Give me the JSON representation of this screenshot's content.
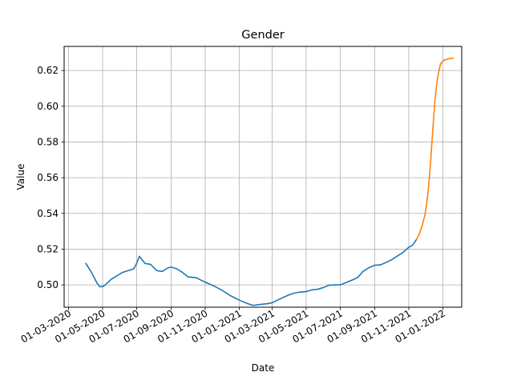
{
  "chart_data": {
    "type": "line",
    "title": "Gender",
    "xlabel": "Date",
    "ylabel": "Value",
    "x_axis_type": "date",
    "x_tick_labels": [
      "01-03-2020",
      "01-05-2020",
      "01-07-2020",
      "01-09-2020",
      "01-11-2020",
      "01-01-2021",
      "01-03-2021",
      "01-05-2021",
      "01-07-2021",
      "01-09-2021",
      "01-11-2021",
      "01-01-2022"
    ],
    "x_tick_dates": [
      "2020-03-01",
      "2020-05-01",
      "2020-07-01",
      "2020-09-01",
      "2020-11-01",
      "2021-01-01",
      "2021-03-01",
      "2021-05-01",
      "2021-07-01",
      "2021-09-01",
      "2021-11-01",
      "2022-01-01"
    ],
    "xlim": [
      "2020-02-22",
      "2022-02-04"
    ],
    "y_ticks": [
      0.5,
      0.52,
      0.54,
      0.56,
      0.58,
      0.6,
      0.62
    ],
    "y_tick_labels": [
      "0.50",
      "0.52",
      "0.54",
      "0.56",
      "0.58",
      "0.60",
      "0.62"
    ],
    "ylim": [
      0.4875,
      0.6335
    ],
    "grid": true,
    "colors": {
      "series_1": "#1f77b4",
      "series_2": "#ff7f0e",
      "grid": "#b0b0b0"
    },
    "series": [
      {
        "color": "#1f77b4",
        "points": [
          [
            "2020-04-01",
            0.512
          ],
          [
            "2020-04-11",
            0.507
          ],
          [
            "2020-04-21",
            0.501
          ],
          [
            "2020-04-26",
            0.499
          ],
          [
            "2020-05-01",
            0.499
          ],
          [
            "2020-05-06",
            0.5
          ],
          [
            "2020-05-16",
            0.503
          ],
          [
            "2020-05-26",
            0.505
          ],
          [
            "2020-06-06",
            0.507
          ],
          [
            "2020-06-16",
            0.508
          ],
          [
            "2020-06-26",
            0.509
          ],
          [
            "2020-07-01",
            0.512
          ],
          [
            "2020-07-06",
            0.516
          ],
          [
            "2020-07-11",
            0.514
          ],
          [
            "2020-07-16",
            0.512
          ],
          [
            "2020-07-26",
            0.5115
          ],
          [
            "2020-08-06",
            0.508
          ],
          [
            "2020-08-16",
            0.5075
          ],
          [
            "2020-08-26",
            0.5095
          ],
          [
            "2020-09-01",
            0.51
          ],
          [
            "2020-09-11",
            0.509
          ],
          [
            "2020-09-21",
            0.507
          ],
          [
            "2020-10-01",
            0.5045
          ],
          [
            "2020-10-16",
            0.504
          ],
          [
            "2020-11-01",
            0.5015
          ],
          [
            "2020-11-16",
            0.4995
          ],
          [
            "2020-12-01",
            0.497
          ],
          [
            "2020-12-16",
            0.494
          ],
          [
            "2021-01-01",
            0.4915
          ],
          [
            "2021-01-16",
            0.4895
          ],
          [
            "2021-01-26",
            0.4885
          ],
          [
            "2021-02-06",
            0.489
          ],
          [
            "2021-02-21",
            0.4895
          ],
          [
            "2021-03-01",
            0.49
          ],
          [
            "2021-03-11",
            0.4915
          ],
          [
            "2021-03-21",
            0.493
          ],
          [
            "2021-04-01",
            0.4945
          ],
          [
            "2021-04-11",
            0.4955
          ],
          [
            "2021-04-21",
            0.496
          ],
          [
            "2021-05-01",
            0.4962
          ],
          [
            "2021-05-11",
            0.4972
          ],
          [
            "2021-05-21",
            0.4975
          ],
          [
            "2021-06-01",
            0.4985
          ],
          [
            "2021-06-11",
            0.4998
          ],
          [
            "2021-06-21",
            0.5
          ],
          [
            "2021-07-01",
            0.5
          ],
          [
            "2021-07-11",
            0.5012
          ],
          [
            "2021-07-21",
            0.5025
          ],
          [
            "2021-08-01",
            0.504
          ],
          [
            "2021-08-11",
            0.5075
          ],
          [
            "2021-08-21",
            0.5095
          ],
          [
            "2021-09-01",
            0.511
          ],
          [
            "2021-09-11",
            0.5112
          ],
          [
            "2021-09-21",
            0.5125
          ],
          [
            "2021-10-01",
            0.514
          ],
          [
            "2021-10-11",
            0.516
          ],
          [
            "2021-10-21",
            0.518
          ],
          [
            "2021-11-01",
            0.521
          ],
          [
            "2021-11-08",
            0.5222
          ],
          [
            "2021-11-15",
            0.5255
          ]
        ]
      },
      {
        "color": "#ff7f0e",
        "points": [
          [
            "2021-11-15",
            0.5255
          ],
          [
            "2021-11-20",
            0.5285
          ],
          [
            "2021-11-25",
            0.533
          ],
          [
            "2021-11-30",
            0.539
          ],
          [
            "2021-12-03",
            0.545
          ],
          [
            "2021-12-06",
            0.553
          ],
          [
            "2021-12-08",
            0.56
          ],
          [
            "2021-12-10",
            0.568
          ],
          [
            "2021-12-12",
            0.577
          ],
          [
            "2021-12-14",
            0.586
          ],
          [
            "2021-12-16",
            0.595
          ],
          [
            "2021-12-18",
            0.603
          ],
          [
            "2021-12-20",
            0.609
          ],
          [
            "2021-12-22",
            0.614
          ],
          [
            "2021-12-24",
            0.618
          ],
          [
            "2021-12-26",
            0.621
          ],
          [
            "2021-12-28",
            0.6235
          ],
          [
            "2021-12-30",
            0.6245
          ],
          [
            "2022-01-01",
            0.625
          ],
          [
            "2022-01-03",
            0.6258
          ],
          [
            "2022-01-05",
            0.626
          ],
          [
            "2022-01-08",
            0.6262
          ],
          [
            "2022-01-11",
            0.6265
          ],
          [
            "2022-01-14",
            0.6268
          ],
          [
            "2022-01-17",
            0.6268
          ],
          [
            "2022-01-20",
            0.627
          ]
        ]
      }
    ]
  }
}
